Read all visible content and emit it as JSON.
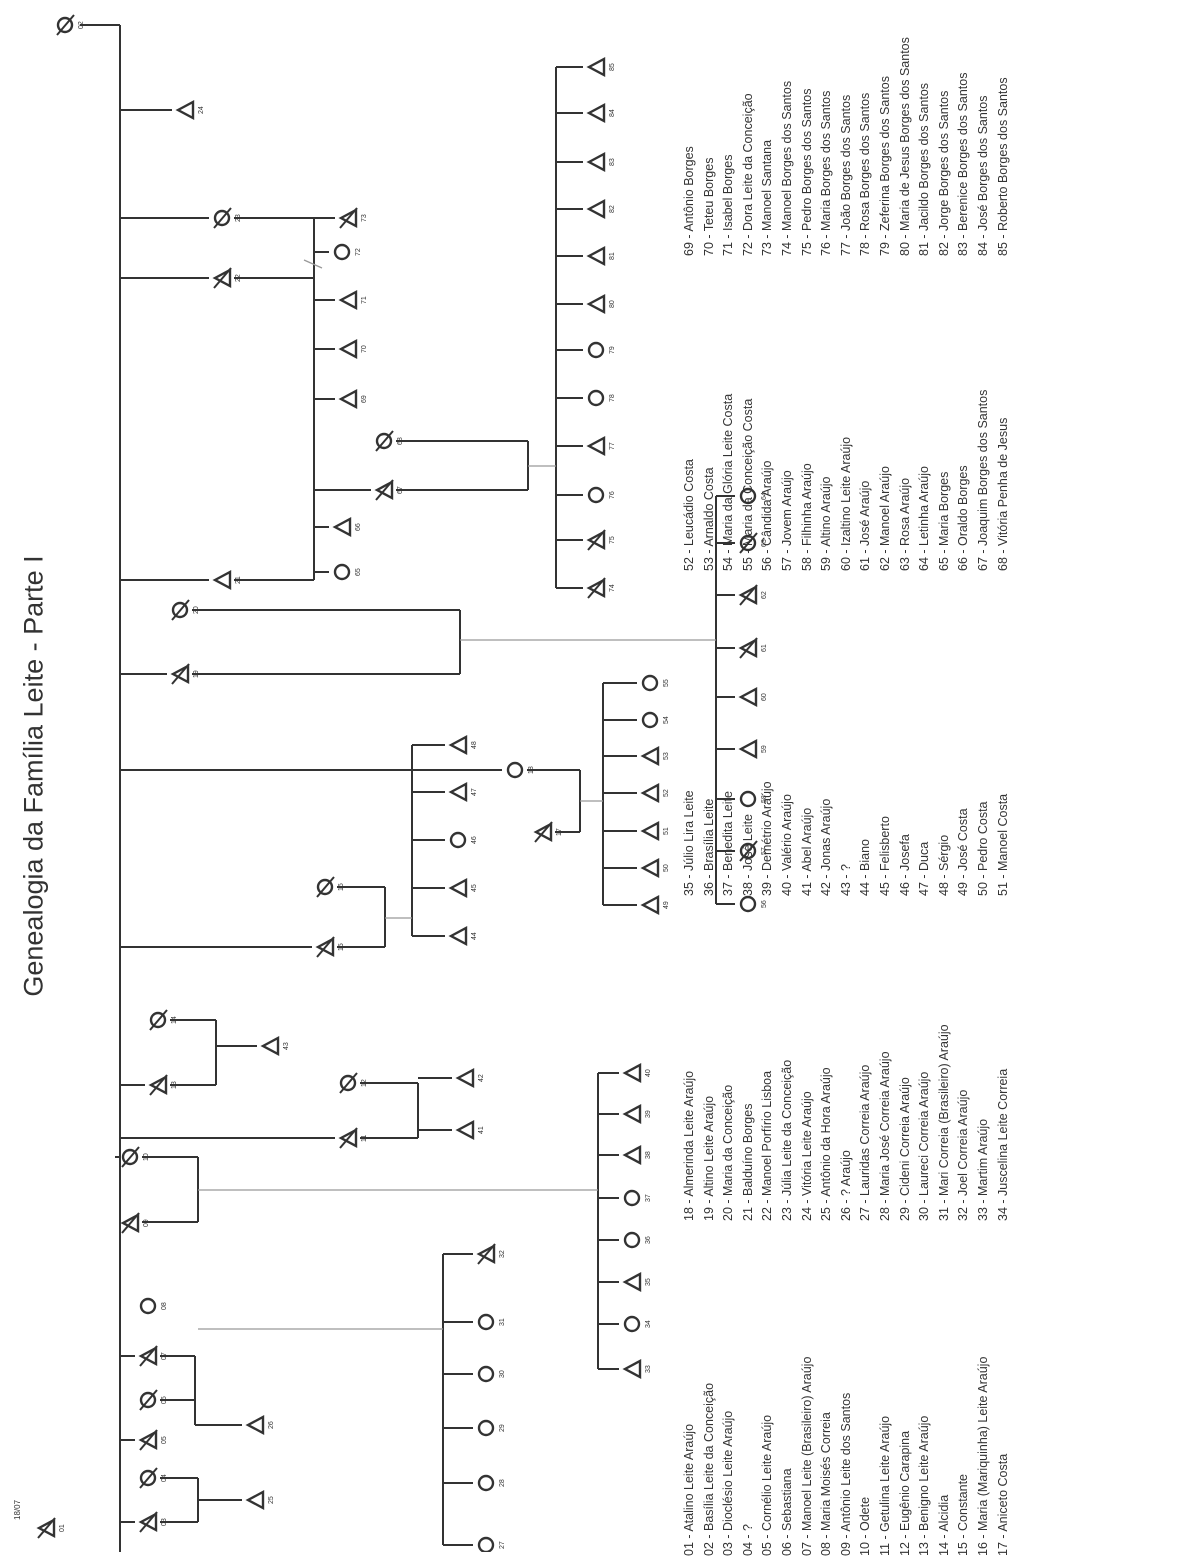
{
  "title": "Genealogia da Família Leite - Parte I",
  "root_label": "18/07",
  "legend": [
    [
      "01 - Atalino Leite Araújo",
      "02 - Basília Leite da Conceição",
      "03 - Dioclésio Leite Araújo",
      "04 - ?",
      "05 - Cornélio Leite Araújo",
      "06 - Sebastiana",
      "07 - Manoel Leite (Brasileiro) Araújo",
      "08 - Maria Moisés Correia",
      "09 - Antônio Leite dos Santos",
      "10 - Odete",
      "11 - Getulina Leite Araújo",
      "12 - Eugênio Carapina",
      "13 - Benigno Leite Araújo",
      "14 - Alcidia",
      "15 - Constante",
      "16 - Maria (Mariquinha) Leite Araújo",
      "17 - Aniceto Costa"
    ],
    [
      "18 - Almerinda Leite Araújo",
      "19 - Altino Leite Araújo",
      "20 - Maria da Conceição",
      "21 - Balduíno Borges",
      "22 - Manoel Porfírio Lisboa",
      "23 - Júlia Leite da Conceição",
      "24 - Vitória Leite Araújo",
      "25 - Antônio da Hora Araújo",
      "26 - ? Araújo",
      "27 - Lauridas Correia Araújo",
      "28 - Maria José Correia Araújo",
      "29 - Cideni Correia Araújo",
      "30 - Laureci Correia Araújo",
      "31 - Mari Correia (Brasileiro) Araújo",
      "32 - Joel Correia Araújo",
      "33 - Martim Araújo",
      "34 - Juscelina Leite Correia"
    ],
    [
      "35 - Júlio Lira Leite",
      "36 - Brasília Leite",
      "37 - Benedita Leite",
      "38 - José Leite",
      "39 - Demétrio Araújo",
      "40 - Valério Araújo",
      "41 - Abel Araújo",
      "42 - Jonas Araújo",
      "43 - ?",
      "44 - Biano",
      "45 - Felisberto",
      "46 - Josefa",
      "47 - Duca",
      "48 - Sérgio",
      "49 - José Costa",
      "50 - Pedro Costa",
      "51 - Manoel Costa"
    ],
    [
      "52 - Leucádio Costa",
      "53 - Arnaldo Costa",
      "54 - Maria da Glória Leite Costa",
      "55 - Maria da Conceição Costa",
      "56 - Cândida Araújo",
      "57 - Jovem Araújo",
      "58 - Filhinha Araújo",
      "59 - Altino Araújo",
      "60 - Izaltino Leite Araújo",
      "61 - José Araújo",
      "62 - Manoel Araújo",
      "63 - Rosa Araújo",
      "64 - Letinha Araújo",
      "65 - Maria Borges",
      "66 - Oraldo Borges",
      "67 - Joaquim Borges dos Santos",
      "68 - Vitória Penha de Jesus"
    ],
    [
      "69 - Antônio Borges",
      "70 - Teteu Borges",
      "71 - Isabel Borges",
      "72 - Dora Leite da Conceição",
      "73 - Manoel Santana",
      "74 - Manoel Borges dos Santos",
      "75 - Pedro Borges dos Santos",
      "76 - Maria Borges dos Santos",
      "77 - João Borges dos Santos",
      "78 - Rosa Borges dos Santos",
      "79 - Zeferina Borges dos Santos",
      "80 - Maria de Jesus Borges dos Santos",
      "81 - Jacildo Borges dos Santos",
      "82 - Jorge Borges dos Santos",
      "83 - Berenice Borges dos Santos",
      "84 - José Borges dos Santos",
      "85 - Roberto Borges dos Santos"
    ]
  ],
  "nodes": [
    {
      "id": "01",
      "shape": "M",
      "deceased": true
    },
    {
      "id": "02",
      "shape": "F",
      "deceased": true
    },
    {
      "id": "03",
      "shape": "M",
      "deceased": true
    },
    {
      "id": "04",
      "shape": "F",
      "deceased": true
    },
    {
      "id": "05",
      "shape": "M",
      "deceased": true
    },
    {
      "id": "06",
      "shape": "F",
      "deceased": true
    },
    {
      "id": "07",
      "shape": "M",
      "deceased": true
    },
    {
      "id": "08",
      "shape": "F",
      "deceased": false
    },
    {
      "id": "09",
      "shape": "M",
      "deceased": true
    },
    {
      "id": "10",
      "shape": "F",
      "deceased": true
    },
    {
      "id": "11",
      "shape": "M",
      "deceased": true
    },
    {
      "id": "12",
      "shape": "F",
      "deceased": true
    },
    {
      "id": "13",
      "shape": "M",
      "deceased": true
    },
    {
      "id": "14",
      "shape": "F",
      "deceased": true
    },
    {
      "id": "15",
      "shape": "M",
      "deceased": true
    },
    {
      "id": "16",
      "shape": "F",
      "deceased": true
    },
    {
      "id": "17",
      "shape": "M",
      "deceased": true
    },
    {
      "id": "18",
      "shape": "F",
      "deceased": false
    },
    {
      "id": "19",
      "shape": "M",
      "deceased": true
    },
    {
      "id": "20",
      "shape": "F",
      "deceased": true
    },
    {
      "id": "21",
      "shape": "M",
      "deceased": false
    },
    {
      "id": "22",
      "shape": "M",
      "deceased": true
    },
    {
      "id": "23",
      "shape": "F",
      "deceased": true
    },
    {
      "id": "24",
      "shape": "M",
      "deceased": false
    },
    {
      "id": "25",
      "shape": "M",
      "deceased": false
    },
    {
      "id": "26",
      "shape": "M",
      "deceased": false
    },
    {
      "id": "27",
      "shape": "F",
      "deceased": false
    },
    {
      "id": "28",
      "shape": "F",
      "deceased": false
    },
    {
      "id": "29",
      "shape": "F",
      "deceased": false
    },
    {
      "id": "30",
      "shape": "F",
      "deceased": false
    },
    {
      "id": "31",
      "shape": "F",
      "deceased": false
    },
    {
      "id": "32",
      "shape": "M",
      "deceased": true
    },
    {
      "id": "33",
      "shape": "M",
      "deceased": false
    },
    {
      "id": "34",
      "shape": "F",
      "deceased": false
    },
    {
      "id": "35",
      "shape": "M",
      "deceased": false
    },
    {
      "id": "36",
      "shape": "F",
      "deceased": false
    },
    {
      "id": "37",
      "shape": "F",
      "deceased": false
    },
    {
      "id": "38",
      "shape": "M",
      "deceased": false
    },
    {
      "id": "39",
      "shape": "M",
      "deceased": false
    },
    {
      "id": "40",
      "shape": "M",
      "deceased": false
    },
    {
      "id": "41",
      "shape": "M",
      "deceased": false
    },
    {
      "id": "42",
      "shape": "M",
      "deceased": false
    },
    {
      "id": "43",
      "shape": "M",
      "deceased": false
    },
    {
      "id": "44",
      "shape": "M",
      "deceased": false
    },
    {
      "id": "45",
      "shape": "M",
      "deceased": false
    },
    {
      "id": "46",
      "shape": "F",
      "deceased": false
    },
    {
      "id": "47",
      "shape": "M",
      "deceased": false
    },
    {
      "id": "48",
      "shape": "M",
      "deceased": false
    },
    {
      "id": "49",
      "shape": "M",
      "deceased": false
    },
    {
      "id": "50",
      "shape": "M",
      "deceased": false
    },
    {
      "id": "51",
      "shape": "M",
      "deceased": false
    },
    {
      "id": "52",
      "shape": "M",
      "deceased": false
    },
    {
      "id": "53",
      "shape": "M",
      "deceased": false
    },
    {
      "id": "54",
      "shape": "F",
      "deceased": false
    },
    {
      "id": "55",
      "shape": "F",
      "deceased": false
    },
    {
      "id": "56",
      "shape": "F",
      "deceased": false
    },
    {
      "id": "57",
      "shape": "F",
      "deceased": true
    },
    {
      "id": "58",
      "shape": "F",
      "deceased": false
    },
    {
      "id": "59",
      "shape": "M",
      "deceased": false
    },
    {
      "id": "60",
      "shape": "M",
      "deceased": false
    },
    {
      "id": "61",
      "shape": "M",
      "deceased": true
    },
    {
      "id": "62",
      "shape": "M",
      "deceased": true
    },
    {
      "id": "63",
      "shape": "F",
      "deceased": true
    },
    {
      "id": "64",
      "shape": "F",
      "deceased": false
    },
    {
      "id": "65",
      "shape": "F",
      "deceased": false
    },
    {
      "id": "66",
      "shape": "M",
      "deceased": false
    },
    {
      "id": "67",
      "shape": "M",
      "deceased": true
    },
    {
      "id": "68",
      "shape": "F",
      "deceased": true
    },
    {
      "id": "69",
      "shape": "M",
      "deceased": false
    },
    {
      "id": "70",
      "shape": "M",
      "deceased": false
    },
    {
      "id": "71",
      "shape": "M",
      "deceased": false
    },
    {
      "id": "72",
      "shape": "F",
      "deceased": false
    },
    {
      "id": "73",
      "shape": "M",
      "deceased": true
    },
    {
      "id": "74",
      "shape": "M",
      "deceased": true
    },
    {
      "id": "75",
      "shape": "M",
      "deceased": true
    },
    {
      "id": "76",
      "shape": "F",
      "deceased": false
    },
    {
      "id": "77",
      "shape": "M",
      "deceased": false
    },
    {
      "id": "78",
      "shape": "F",
      "deceased": false
    },
    {
      "id": "79",
      "shape": "F",
      "deceased": false
    },
    {
      "id": "80",
      "shape": "M",
      "deceased": false
    },
    {
      "id": "81",
      "shape": "M",
      "deceased": false
    },
    {
      "id": "82",
      "shape": "M",
      "deceased": false
    },
    {
      "id": "83",
      "shape": "M",
      "deceased": false
    },
    {
      "id": "84",
      "shape": "M",
      "deceased": false
    },
    {
      "id": "85",
      "shape": "M",
      "deceased": false
    }
  ]
}
